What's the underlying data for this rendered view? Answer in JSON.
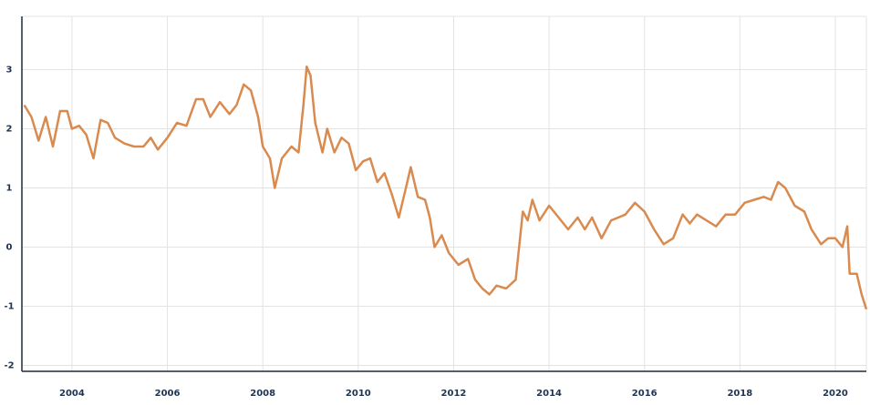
{
  "chart_data": {
    "type": "line",
    "color": "#d98a4f",
    "grid": true,
    "xlim": [
      2002.95,
      2020.65
    ],
    "ylim": [
      -2.1,
      3.9
    ],
    "xticks": [
      2004,
      2006,
      2008,
      2010,
      2012,
      2014,
      2016,
      2018,
      2020
    ],
    "yticks": [
      3,
      2,
      1,
      0,
      -1,
      -2
    ],
    "x": [
      2003.0,
      2003.15,
      2003.3,
      2003.45,
      2003.6,
      2003.75,
      2003.9,
      2004.0,
      2004.15,
      2004.3,
      2004.45,
      2004.6,
      2004.75,
      2004.9,
      2005.1,
      2005.3,
      2005.5,
      2005.65,
      2005.8,
      2006.0,
      2006.2,
      2006.4,
      2006.6,
      2006.75,
      2006.9,
      2007.1,
      2007.3,
      2007.45,
      2007.6,
      2007.75,
      2007.9,
      2008.0,
      2008.15,
      2008.25,
      2008.4,
      2008.6,
      2008.75,
      2008.85,
      2008.92,
      2009.0,
      2009.1,
      2009.25,
      2009.35,
      2009.5,
      2009.65,
      2009.8,
      2009.95,
      2010.1,
      2010.25,
      2010.4,
      2010.55,
      2010.7,
      2010.85,
      2011.0,
      2011.1,
      2011.25,
      2011.4,
      2011.5,
      2011.6,
      2011.75,
      2011.9,
      2012.1,
      2012.3,
      2012.45,
      2012.6,
      2012.75,
      2012.9,
      2013.1,
      2013.3,
      2013.45,
      2013.55,
      2013.65,
      2013.8,
      2014.0,
      2014.2,
      2014.4,
      2014.6,
      2014.75,
      2014.9,
      2015.1,
      2015.3,
      2015.45,
      2015.6,
      2015.8,
      2016.0,
      2016.2,
      2016.4,
      2016.6,
      2016.8,
      2016.95,
      2017.1,
      2017.3,
      2017.5,
      2017.7,
      2017.9,
      2018.1,
      2018.3,
      2018.5,
      2018.65,
      2018.8,
      2018.95,
      2019.15,
      2019.35,
      2019.5,
      2019.7,
      2019.85,
      2020.0,
      2020.15,
      2020.25,
      2020.3,
      2020.45,
      2020.55,
      2020.65
    ],
    "values": [
      2.4,
      2.2,
      1.8,
      2.2,
      1.7,
      2.3,
      2.3,
      2.0,
      2.05,
      1.9,
      1.5,
      2.15,
      2.1,
      1.85,
      1.75,
      1.7,
      1.7,
      1.85,
      1.65,
      1.85,
      2.1,
      2.05,
      2.5,
      2.5,
      2.2,
      2.45,
      2.25,
      2.4,
      2.75,
      2.65,
      2.2,
      1.7,
      1.5,
      1.0,
      1.5,
      1.7,
      1.6,
      2.4,
      3.05,
      2.9,
      2.1,
      1.6,
      2.0,
      1.6,
      1.85,
      1.75,
      1.3,
      1.45,
      1.5,
      1.1,
      1.25,
      0.9,
      0.5,
      1.0,
      1.35,
      0.85,
      0.8,
      0.5,
      0.0,
      0.2,
      -0.1,
      -0.3,
      -0.2,
      -0.55,
      -0.7,
      -0.8,
      -0.65,
      -0.7,
      -0.55,
      0.6,
      0.45,
      0.8,
      0.45,
      0.7,
      0.5,
      0.3,
      0.5,
      0.3,
      0.5,
      0.15,
      0.45,
      0.5,
      0.55,
      0.75,
      0.6,
      0.3,
      0.05,
      0.15,
      0.55,
      0.4,
      0.55,
      0.45,
      0.35,
      0.55,
      0.55,
      0.75,
      0.8,
      0.85,
      0.8,
      1.1,
      1.0,
      0.7,
      0.6,
      0.3,
      0.05,
      0.15,
      0.15,
      0.0,
      0.35,
      -0.45,
      -0.45,
      -0.8,
      -1.05
    ]
  }
}
